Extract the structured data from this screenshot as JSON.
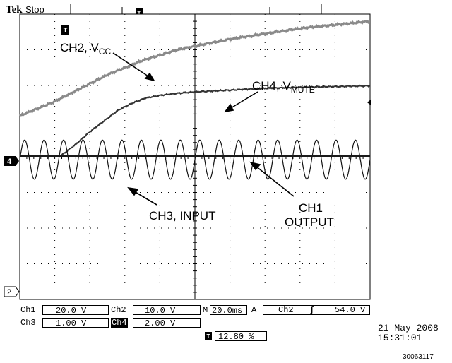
{
  "header": {
    "brand": "Tek",
    "run_state": "Stop",
    "trigger_marker_glyph": "T"
  },
  "screen": {
    "ground_marker_ch4": "4",
    "ground_marker_ch2": "2"
  },
  "annotations": {
    "ch2_prefix": "CH2, V",
    "ch2_sub": "CC",
    "ch4_prefix": "CH4, V",
    "ch4_sub": "MUTE",
    "ch3": "CH3, INPUT",
    "ch1_line1": "CH1",
    "ch1_line2": "OUTPUT"
  },
  "readout": {
    "ch1_label": "Ch1",
    "ch1_scale": "20.0 V",
    "ch2_label": "Ch2",
    "ch2_scale": "10.0 V",
    "ch3_label": "Ch3",
    "ch3_scale": "1.00 V",
    "ch4_label": "Ch4",
    "ch4_scale": "2.00 V",
    "timebase_prefix": "M",
    "timebase": "20.0ms",
    "trigger_mode": "A",
    "trigger_source": "Ch2",
    "trigger_slope": "ʃ",
    "trigger_level": "54.0 V",
    "trigger_position": "12.80 %",
    "date": "21 May 2008",
    "time": "15:31:01",
    "figure_id": "30063117"
  },
  "chart_data": {
    "type": "line",
    "title": "",
    "xlabel": "",
    "ylabel": "",
    "grid": true,
    "x_divisions": 10,
    "y_divisions": 8,
    "x_range_div": [
      0,
      10
    ],
    "y_range_div": [
      -4,
      4
    ],
    "series": [
      {
        "name": "CH2, VCC",
        "color": "#8a8a8a",
        "x": [
          0,
          0.5,
          1,
          1.5,
          2,
          2.5,
          3,
          3.5,
          4,
          4.5,
          5,
          6,
          7,
          8,
          9,
          10
        ],
        "y": [
          1.15,
          1.35,
          1.55,
          1.8,
          2.05,
          2.3,
          2.5,
          2.7,
          2.85,
          3.0,
          3.1,
          3.3,
          3.45,
          3.6,
          3.7,
          3.8
        ]
      },
      {
        "name": "CH4, VMUTE",
        "color": "#333333",
        "x": [
          1.2,
          1.6,
          2.0,
          2.4,
          2.8,
          3.2,
          3.6,
          4.0,
          4.5,
          5,
          6,
          7,
          8,
          9,
          10
        ],
        "y": [
          0.05,
          0.35,
          0.7,
          1.0,
          1.3,
          1.5,
          1.65,
          1.72,
          1.78,
          1.82,
          1.87,
          1.92,
          1.95,
          1.97,
          1.99
        ]
      },
      {
        "name": "CH3, INPUT",
        "color": "#555555",
        "x": [
          0,
          10
        ],
        "y": [
          0.02,
          0.02
        ],
        "note_only_printed": ""
      },
      {
        "name": "CH1 OUTPUT",
        "color": "#111111",
        "periods": 18,
        "amplitude_div": 0.55,
        "offset_div": -0.08
      }
    ]
  }
}
